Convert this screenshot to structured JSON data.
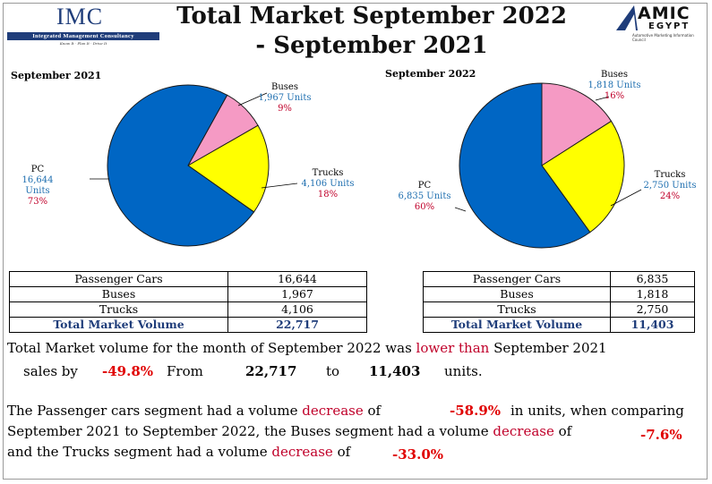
{
  "header": {
    "title_line1": "Total Market September 2022",
    "title_line2": "- September 2021",
    "left_logo": {
      "name": "IMC",
      "bar_text": "Integrated Management Consultancy",
      "tagline": "Know It · Plan It · Drive It"
    },
    "right_logo": {
      "name": "AMIC",
      "sub": "EGYPT",
      "caption": "Automotive Marketing Information Council",
      "colors": {
        "accent": "#1f3d7a"
      }
    }
  },
  "chart_data": [
    {
      "type": "pie",
      "title": "September 2021",
      "labels": [
        "Buses",
        "Trucks",
        "PC"
      ],
      "values": [
        1967,
        4106,
        16644
      ],
      "value_labels": [
        "1,967 Units",
        "4,106 Units",
        "16,644 Units"
      ],
      "percent_labels": [
        "9%",
        "18%",
        "73%"
      ],
      "colors": [
        "#f59ac4",
        "#ffff00",
        "#0066c4"
      ]
    },
    {
      "type": "pie",
      "title": "September 2022",
      "labels": [
        "Buses",
        "Trucks",
        "PC"
      ],
      "values": [
        1818,
        2750,
        6835
      ],
      "value_labels": [
        "1,818 Units",
        "2,750 Units",
        "6,835 Units"
      ],
      "percent_labels": [
        "16%",
        "24%",
        "60%"
      ],
      "colors": [
        "#f59ac4",
        "#ffff00",
        "#0066c4"
      ]
    }
  ],
  "tables": {
    "sep2021": {
      "rows": [
        {
          "label": "Passenger Cars",
          "value": "16,644"
        },
        {
          "label": "Buses",
          "value": "1,967"
        },
        {
          "label": "Trucks",
          "value": "4,106"
        }
      ],
      "total_label": "Total Market Volume",
      "total_value": "22,717"
    },
    "sep2022": {
      "rows": [
        {
          "label": "Passenger Cars",
          "value": "6,835"
        },
        {
          "label": "Buses",
          "value": "1,818"
        },
        {
          "label": "Trucks",
          "value": "2,750"
        }
      ],
      "total_label": "Total Market Volume",
      "total_value": "11,403"
    }
  },
  "summary": {
    "p1_a": "Total Market volume for the month of September 2022 was ",
    "p1_red": "lower than",
    "p1_b": " September 2021",
    "p2_a": "sales by",
    "p2_pct": "-49.8%",
    "p2_from": "From",
    "p2_v1": "22,717",
    "p2_to": "to",
    "p2_v2": "11,403",
    "p2_units": "units.",
    "p3_a": "The Passenger cars segment had a volume ",
    "p3_red": "decrease",
    "p3_b": " of",
    "p3_pct": "-58.9%",
    "p3_c": "in units, when comparing",
    "p4_a": "September 2021 to September 2022, the Buses segment had a volume ",
    "p4_red": "decrease",
    "p4_b": " of",
    "p4_pct": "-7.6%",
    "p5_a": "and the Trucks segment had a volume ",
    "p5_red": "decrease",
    "p5_b": " of",
    "p5_pct": "-33.0%"
  }
}
